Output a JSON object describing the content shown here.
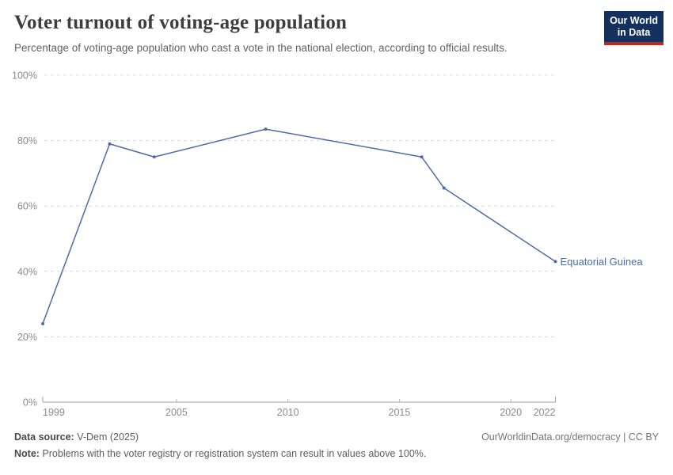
{
  "header": {
    "logo": {
      "line1": "Our World",
      "line2": "in Data",
      "bg_color": "#14305C",
      "accent_color": "#C0261F"
    }
  },
  "chart_data": {
    "type": "line",
    "title": "Voter turnout of voting-age population",
    "subtitle": "Percentage of voting-age population who cast a vote in the national election, according to official results.",
    "series": [
      {
        "name": "Equatorial Guinea",
        "color": "#4C6CA6",
        "points": [
          [
            1999,
            24
          ],
          [
            2002,
            79
          ],
          [
            2004,
            75
          ],
          [
            2009,
            83.5
          ],
          [
            2016,
            75
          ],
          [
            2017,
            65.5
          ],
          [
            2022,
            43
          ]
        ]
      }
    ],
    "xlim": [
      1999,
      2022
    ],
    "ylim": [
      0,
      100
    ],
    "x_ticks": [
      1999,
      2005,
      2010,
      2015,
      2020,
      2022
    ],
    "y_tick_values": [
      0,
      20,
      40,
      60,
      80,
      100
    ],
    "y_tick_labels": [
      "0%",
      "20%",
      "40%",
      "60%",
      "80%",
      "100%"
    ],
    "grid": "horizontal-dashed",
    "legend_position": "end-of-line-label"
  },
  "footer": {
    "source_label": "Data source:",
    "source_value": " V-Dem (2025)",
    "link": "OurWorldinData.org/democracy | CC BY",
    "note_label": "Note:",
    "note_value": " Problems with the voter registry or registration system can result in values above 100%."
  }
}
